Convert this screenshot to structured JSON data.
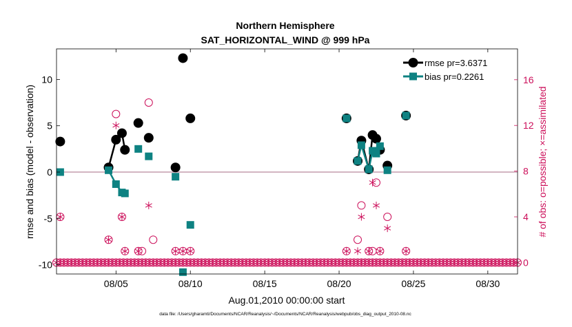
{
  "chart_data": {
    "type": "scatter",
    "title": "Northern Hemisphere",
    "subtitle": "SAT_HORIZONTAL_WIND @ 999 hPa",
    "xlabel": "Aug.01,2010 00:00:00 start",
    "ylabel": "rmse and bias (model - observation)",
    "ylabel_right": "# of obs: o=possible; ×=assimilated",
    "xlim": [
      1,
      32
    ],
    "ylim": [
      -11,
      13.3
    ],
    "ylim_right": [
      -1,
      18.7
    ],
    "x_ticks": [
      {
        "value": 5,
        "label": "08/05"
      },
      {
        "value": 10,
        "label": "08/10"
      },
      {
        "value": 15,
        "label": "08/15"
      },
      {
        "value": 20,
        "label": "08/20"
      },
      {
        "value": 25,
        "label": "08/25"
      },
      {
        "value": 30,
        "label": "08/30"
      }
    ],
    "y_ticks": [
      {
        "value": 10,
        "label": "10"
      },
      {
        "value": 5,
        "label": "5"
      },
      {
        "value": 0,
        "label": "0"
      },
      {
        "value": -5,
        "label": "-5"
      },
      {
        "value": -10,
        "label": "-10"
      }
    ],
    "y_ticks_right": [
      {
        "value": 16,
        "label": "16"
      },
      {
        "value": 12,
        "label": "12"
      },
      {
        "value": 8,
        "label": "8"
      },
      {
        "value": 4,
        "label": "4"
      },
      {
        "value": 0,
        "label": "0"
      }
    ],
    "legend": {
      "position": "top-right"
    },
    "series": [
      {
        "name": "rmse pr=3.6371",
        "color": "#000000",
        "marker": "circle",
        "points": [
          [
            1.25,
            3.3
          ],
          [
            4.5,
            0.5
          ],
          [
            5.0,
            3.5
          ],
          [
            5.4,
            4.2
          ],
          [
            5.6,
            2.4
          ],
          [
            6.5,
            5.3
          ],
          [
            7.2,
            3.7
          ],
          [
            9.0,
            0.5
          ],
          [
            9.5,
            12.3
          ],
          [
            10.0,
            5.8
          ],
          [
            20.5,
            5.8
          ],
          [
            21.25,
            1.2
          ],
          [
            21.5,
            3.4
          ],
          [
            22.0,
            0.3
          ],
          [
            22.25,
            4.0
          ],
          [
            22.5,
            3.6
          ],
          [
            22.75,
            2.4
          ],
          [
            23.25,
            0.7
          ],
          [
            24.5,
            6.1
          ]
        ],
        "segments": [
          [
            [
              4.5,
              0.5
            ],
            [
              5.0,
              3.5
            ],
            [
              5.4,
              4.2
            ],
            [
              5.6,
              2.4
            ]
          ],
          [
            [
              21.25,
              1.2
            ],
            [
              21.5,
              3.4
            ],
            [
              22.0,
              0.3
            ],
            [
              22.25,
              4.0
            ],
            [
              22.5,
              3.6
            ],
            [
              22.75,
              2.4
            ]
          ]
        ]
      },
      {
        "name": "bias pr=0.2261",
        "color": "#0e8282",
        "marker": "square",
        "points": [
          [
            1.25,
            0.0
          ],
          [
            4.5,
            0.2
          ],
          [
            5.0,
            -1.3
          ],
          [
            5.4,
            -2.2
          ],
          [
            5.6,
            -2.3
          ],
          [
            6.5,
            2.5
          ],
          [
            7.2,
            1.7
          ],
          [
            9.0,
            -0.5
          ],
          [
            9.5,
            -10.8
          ],
          [
            10.0,
            -5.7
          ],
          [
            20.5,
            5.8
          ],
          [
            21.25,
            1.2
          ],
          [
            21.5,
            2.9
          ],
          [
            22.0,
            0.3
          ],
          [
            22.25,
            2.3
          ],
          [
            22.5,
            2.0
          ],
          [
            22.75,
            2.8
          ],
          [
            23.25,
            0.2
          ],
          [
            24.5,
            6.1
          ]
        ],
        "segments": [
          [
            [
              4.5,
              0.2
            ],
            [
              5.0,
              -1.3
            ],
            [
              5.4,
              -2.2
            ],
            [
              5.6,
              -2.3
            ]
          ],
          [
            [
              21.25,
              1.2
            ],
            [
              21.5,
              2.9
            ],
            [
              22.0,
              0.3
            ],
            [
              22.25,
              2.3
            ],
            [
              22.5,
              2.0
            ],
            [
              22.75,
              2.8
            ]
          ]
        ]
      }
    ],
    "obs_possible": {
      "name": "possible",
      "marker": "open-circle",
      "color": "#cc0f5a",
      "points": [
        [
          1.25,
          4
        ],
        [
          4.5,
          2
        ],
        [
          5.0,
          13
        ],
        [
          5.4,
          4
        ],
        [
          5.6,
          1
        ],
        [
          6.5,
          1
        ],
        [
          6.75,
          1
        ],
        [
          7.2,
          14
        ],
        [
          7.5,
          2
        ],
        [
          9.0,
          1
        ],
        [
          9.5,
          1
        ],
        [
          10.0,
          1
        ],
        [
          20.5,
          1
        ],
        [
          21.25,
          2
        ],
        [
          21.5,
          5
        ],
        [
          22.0,
          1
        ],
        [
          22.25,
          1
        ],
        [
          22.5,
          7
        ],
        [
          22.75,
          1
        ],
        [
          23.25,
          4
        ],
        [
          24.5,
          1
        ]
      ]
    },
    "obs_assimilated": {
      "name": "assimilated",
      "marker": "asterisk",
      "color": "#cc0f5a",
      "points": [
        [
          1.25,
          4
        ],
        [
          4.5,
          2
        ],
        [
          5.0,
          12
        ],
        [
          5.4,
          4
        ],
        [
          5.6,
          1
        ],
        [
          6.5,
          1
        ],
        [
          7.2,
          5
        ],
        [
          9.0,
          1
        ],
        [
          9.5,
          1
        ],
        [
          10.0,
          1
        ],
        [
          20.5,
          1
        ],
        [
          21.25,
          1
        ],
        [
          21.5,
          4
        ],
        [
          22.0,
          1
        ],
        [
          22.25,
          7
        ],
        [
          22.5,
          5
        ],
        [
          22.75,
          1
        ],
        [
          23.25,
          3
        ],
        [
          24.5,
          1
        ]
      ]
    },
    "zero_baseline": {
      "x_start": 1,
      "x_end": 32,
      "x_step": 0.25,
      "value": 0
    }
  },
  "footer": "data file: /Users/gharamti/Documents/NCAR/Reanalysis/~/Documents/NCAR/Reanalysis/webpub/obs_diag_output_2010-08.nc"
}
